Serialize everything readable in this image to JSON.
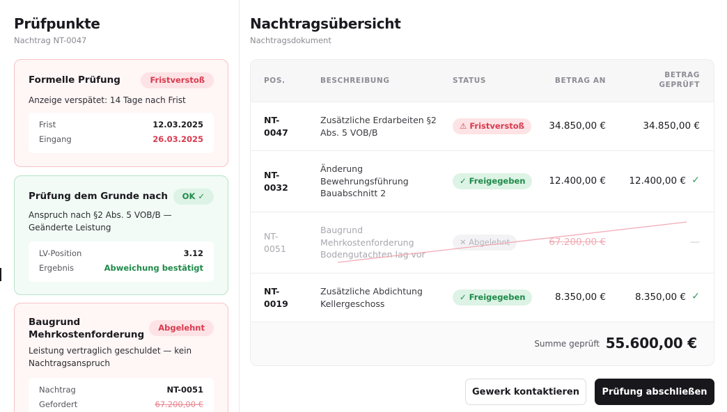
{
  "left": {
    "title": "Prüfpunkte",
    "subtitle": "Nachtrag NT-0047",
    "cards": [
      {
        "title": "Formelle Prüfung",
        "badge": "Fristverstoß",
        "description": "Anzeige verspätet: 14 Tage nach Frist",
        "rows": [
          {
            "label": "Frist",
            "value": "12.03.2025"
          },
          {
            "label": "Eingang",
            "value": "26.03.2025"
          }
        ]
      },
      {
        "title": "Prüfung dem Grunde nach",
        "badge": "OK ✓",
        "description": "Anspruch nach §2 Abs. 5 VOB/B — Geänderte Leistung",
        "rows": [
          {
            "label": "LV-Position",
            "value": "3.12"
          },
          {
            "label": "Ergebnis",
            "value": "Abweichung bestätigt"
          }
        ]
      },
      {
        "title": "Baugrund Mehrkostenforderung",
        "badge": "Abgelehnt",
        "description": "Leistung vertraglich geschuldet — kein Nachtragsanspruch",
        "rows": [
          {
            "label": "Nachtrag",
            "value": "NT-0051"
          },
          {
            "label": "Gefordert",
            "value": "67.200,00 €"
          }
        ]
      }
    ]
  },
  "main": {
    "title": "Nachtragsübersicht",
    "subtitle": "Nachtragsdokument",
    "columns": [
      "POS.",
      "BESCHREIBUNG",
      "STATUS",
      "BETRAG AN",
      "BETRAG GEPRÜFT"
    ],
    "rows": [
      {
        "pos": "NT-0047",
        "description": "Zusätzliche Erdarbeiten §2 Abs. 5 VOB/B",
        "status": "⚠ Fristverstoß",
        "amount_requested": "34.850,00 €",
        "amount_checked": "34.850,00 €"
      },
      {
        "pos": "NT-0032",
        "description": "Änderung Bewehrungsführung Bauabschnitt 2",
        "status": "✓ Freigegeben",
        "amount_requested": "12.400,00 €",
        "amount_checked": "12.400,00 €",
        "check": "✓"
      },
      {
        "pos": "NT-0051",
        "description": "Baugrund Mehrkostenforderung Bodengutachten lag vor",
        "status": "✕ Abgelehnt",
        "amount_requested": "67.200,00 €",
        "amount_checked": "—"
      },
      {
        "pos": "NT-0019",
        "description": "Zusätzliche Abdichtung Kellergeschoss",
        "status": "✓ Freigegeben",
        "amount_requested": "8.350,00 €",
        "amount_checked": "8.350,00 €",
        "check": "✓"
      }
    ],
    "sum_label": "Summe geprüft",
    "sum_value": "55.600,00 €"
  },
  "actions": {
    "contact": "Gewerk kontaktieren",
    "finish": "Prüfung abschließen"
  },
  "colors": {
    "accent_red": "#d83a4e",
    "accent_green": "#1f8a4a",
    "primary_button": "#17171c"
  }
}
